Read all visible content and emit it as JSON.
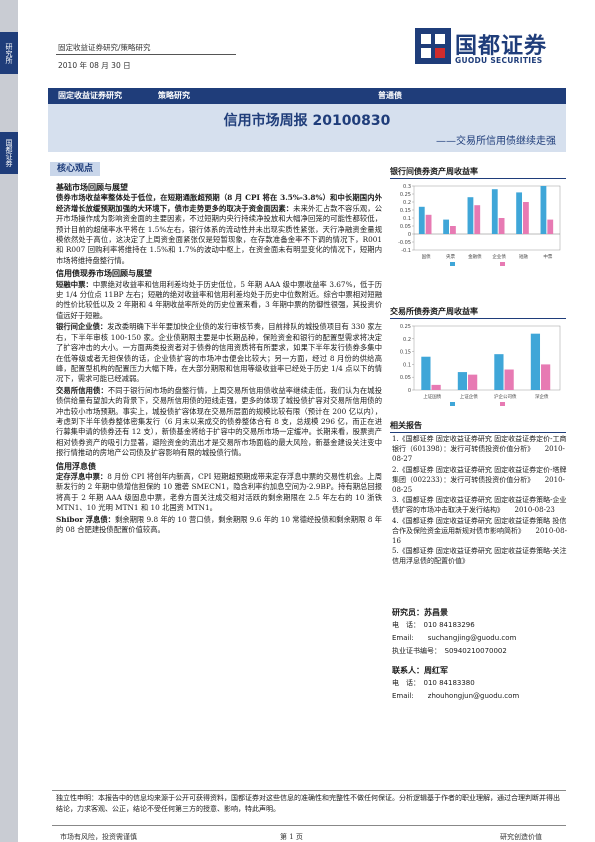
{
  "sidebar": {
    "tab1": "研究所",
    "tab2": "国都证券"
  },
  "header": {
    "line1": "固定收益证券研究/策略研究",
    "line2": "2010 年 08 月 30 日"
  },
  "logo": {
    "cn": "国都证券",
    "en": "GUODU SECURITIES"
  },
  "band": {
    "left": "固定收益证券研究",
    "mid": "策略研究",
    "right": "普通债"
  },
  "title": "信用市场周报 20100830",
  "subtitle": "——交易所信用债继续走强",
  "core_label": "核心观点",
  "main": {
    "h1": "基础市场回顾与展望",
    "p1_bold": "债券市场收益率整体处于低位，在短期通胀超预期（8 月 CPI 将在 3.5%-3.8%）和中长期国内外经济增长放缓预期加强的大环境下，债市走势更多的取决于资金面因素：",
    "p1_rest": "未来外汇占款不容乐观，公开市场操作成为影响资金面的主要因素，不过短期内央行持续净投放和大幅净回笼的可能性都较低，预计目前的超储率水平将在 1.5%左右，银行体系的流动性并未出现实质性紧张，天行净融资金量规模依然处于高位，这决定了上周资金面紧张仅是短暂现象，在存款准备金率不下调的情况下，R001 和 R007 回购利率将维持在 1.5%和 1.7%的波动中枢上，在资金面未有明显变化的情况下，短期内市场将维持盘整行情。",
    "h2": "信用债现券市场回顾与展望",
    "p2_lead": "短融中票：",
    "p2_rest": "中票绝对收益率和信用利差均处于历史低位，5 年期 AAA 级中票收益率 3.67%，低于历史 1/4 分位点 11BP 左右；短融的绝对收益率和信用利差均处于历史中位数附近。综合中票相对短融的性价比较低以及 2 年期和 4 年期收益率所处的历史位置来看，3 年期中票的防御性很强，其投资价值远好于短融。",
    "p3_lead": "银行间企业债：",
    "p3_rest": "发改委明确下半年要加快企业债的发行审核节奏，目前排队的城投债项目有 330 家左右，下半年审核 100-150 家。企业债期限主要是中长期品种，保险资金和银行的配置型需求将决定了扩容冲击的大小。一方面两类投资者对于债券的信用资质将有所要求，如果下半年发行债券多集中在低等级或者无担保债的话，企业债扩容的市场冲击便会比较大；另一方面，经过 8 月份的供给高峰，配置型机构的配置压力大幅下降，在大部分期限和信用等级收益率已经处于历史 1/4 点以下的情况下，需求可能已经减弱。",
    "p4_lead": "交易所信用债：",
    "p4_rest": "不同于银行间市场的盘整行情，上周交易所信用债收益率继续走低，我们认为在城投债供给量有望加大的背景下，交易所信用债的短线走强，更多的体现了城投债扩容对交易所信用债的冲击较小市场预期。事实上，城投债扩容体现在交易所层面的规模比较有限（预计在 200 亿以内），考虑到下半年债券整体密集发行（6 月末以来成交的债券整体合有 8 支，总规模 296 亿，而正在进行募集申请的债券还有 12 支），新债基金将给于扩容中的交易所市场一定缓冲。长期来看，股票资产相对债券资产的吸引力显著，避险资金的流出才是交易所市场面临的最大风险，新基金建设关注变中报行情推动的房地产公司债及扩容影响有限的城投债行情。",
    "h3": "信用浮息债",
    "p5_lead": "定存浮息中票：",
    "p5_rest": "8 月份 CPI 将创年内新高，CPI 短期超预期成带来定存浮息中票的交易性机会。上周新发行的 2 年期中债增信担保的 10 雅砻 SMECN1，隐含利率约加息空间为-2.9BP。持有期总回报将高于 2 年期 AAA 级固息中票，老券方面关注成交相对活跃的剩余期限在 2.5 年左右的 10 浙铁 MTN1、10 光明 MTN1 和 10 北国资 MTN1。",
    "p6_lead": "Shibor 浮息债：",
    "p6_rest": "剩余期限 9.8 年的 10 营口债，剩余期限 9.6 年的 10 常德经投债和剩余期限 8 年的 08 合肥建投债配置价值较高。"
  },
  "chart1": {
    "title": "银行间债券资产周收益率",
    "chart_data": {
      "type": "bar",
      "categories": [
        "国债",
        "央票",
        "金融债",
        "企业债",
        "短融",
        "中票"
      ],
      "series": [
        {
          "name": "",
          "values": [
            0.17,
            0.09,
            0.23,
            0.28,
            0.26,
            0.3
          ]
        },
        {
          "name": "",
          "values": [
            0.12,
            0.05,
            0.18,
            0.1,
            0.2,
            0.09
          ]
        }
      ],
      "ylim": [
        -0.1,
        0.3
      ],
      "yticks": [
        "0.3",
        "0.25",
        "0.2",
        "0.15",
        "0.1",
        "0.05",
        "0",
        "-0.05",
        "-0.1"
      ],
      "colors": [
        "#3fa6d8",
        "#e77ab3"
      ]
    }
  },
  "chart2": {
    "title": "交易所债券资产周收益率",
    "chart_data": {
      "type": "bar",
      "categories": [
        "上证国债",
        "上证企债",
        "沪企公司债",
        "深企债"
      ],
      "series": [
        {
          "name": "",
          "values": [
            0.13,
            0.07,
            0.14,
            0.22
          ]
        },
        {
          "name": "",
          "values": [
            0.02,
            0.06,
            0.08,
            0.1
          ]
        }
      ],
      "ylim": [
        0,
        0.25
      ],
      "yticks": [
        "0.25",
        "0.2",
        "0.15",
        "0.1",
        "0.05",
        "0"
      ],
      "colors": [
        "#3fa6d8",
        "#e77ab3"
      ]
    }
  },
  "reports": {
    "title": "相关报告",
    "items": [
      "1.《国都证券 固定收益证券研究 固定收益证券定价-工商银行（601398）：发行可转债投资价值分析》　　2010-08-27",
      "2.《国都证券 固定收益证券研究 固定收益证券定价-塔牌集团（002233）：发行可转债投资价值分析》　　2010-08-25",
      "3.《国都证券 固定收益证券研究 固定收益证券策略-企业债扩容的市场冲击取决于发行结构》　　2010-08-23",
      "4.《国都证券 固定收益证券研究 固定收益证券策略 投信合作及保险资金运用新规对债市影响简析》　　2010-08-16",
      "5.《国都证券 固定收益证券研究 固定收益证券策略-关注信用浮息债的配置价值》"
    ]
  },
  "analyst": {
    "title": "研究员：苏昌景",
    "phone": "电　话：　010 84183296",
    "email": "Email:　　suchangjing@guodu.com",
    "cert": "执业证书编号：　S0940210070002",
    "contact_title": "联系人：周红军",
    "c_phone": "电　话：　010 84183380",
    "c_email": "Email:　　zhouhongjun@guodu.com"
  },
  "disclaimer": "独立性申明：本报告中的信息均来源于公开可获得资料，国都证券对这些信息的准确性和完整性不做任何保证。分析逻辑基于作者的职业理解，通过合理判断并得出结论，力求客观、公正，结论不受任何第三方的授意、影响，特此声明。",
  "footer": {
    "left": "市场有风险，投资需谨慎",
    "center": "第 1 页",
    "right": "研究创造价值"
  }
}
